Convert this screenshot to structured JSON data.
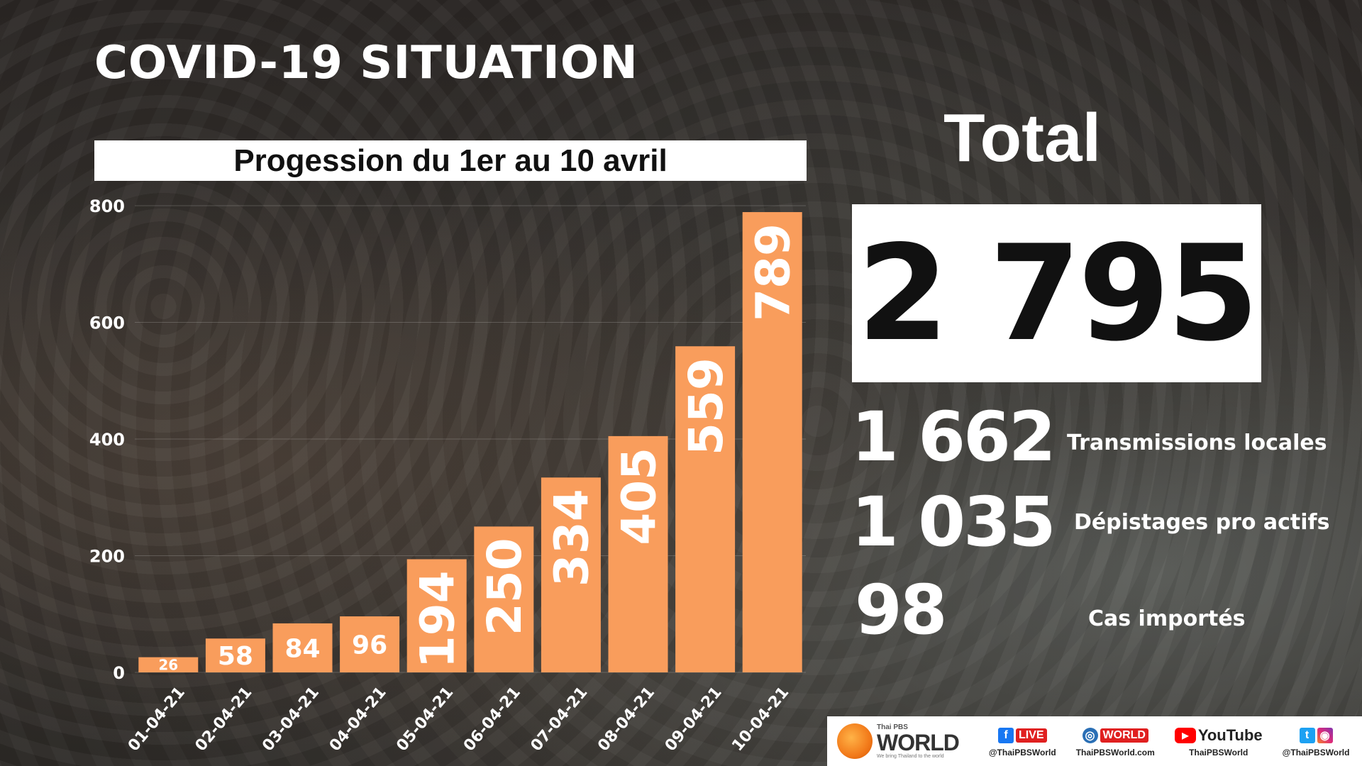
{
  "header": {
    "title": "COVID-19 SITUATION"
  },
  "subtitle": "Progession du 1er au 10 avril",
  "chart_data": {
    "type": "bar",
    "title": "Progession du 1er au 10 avril",
    "categories": [
      "01-04-21",
      "02-04-21",
      "03-04-21",
      "04-04-21",
      "05-04-21",
      "06-04-21",
      "07-04-21",
      "08-04-21",
      "09-04-21",
      "10-04-21"
    ],
    "values": [
      26,
      58,
      84,
      96,
      194,
      250,
      334,
      405,
      559,
      789
    ],
    "ylim": [
      0,
      800
    ],
    "yticks": [
      0,
      200,
      400,
      600,
      800
    ],
    "bar_color": "#f99d5c",
    "grid": true
  },
  "totals": {
    "label": "Total",
    "value": "2 795",
    "breakdown": [
      {
        "value": "1 662",
        "label": "Transmissions locales"
      },
      {
        "value": "1 035",
        "label": "Dépistages pro actifs"
      },
      {
        "value": "98",
        "label": "Cas importés"
      }
    ]
  },
  "footer": {
    "brand_top": "Thai PBS",
    "brand_name": "WORLD",
    "brand_tagline": "We bring Thailand to the world",
    "socials": [
      {
        "icon": "facebook-live-icon",
        "badge": "LIVE",
        "handle": "@ThaiPBSWorld"
      },
      {
        "icon": "globe-icon",
        "badge": "WORLD",
        "handle": "ThaiPBSWorld.com"
      },
      {
        "icon": "youtube-icon",
        "badge": "YouTube",
        "handle": "ThaiPBSWorld"
      },
      {
        "icon": "twitter-instagram-icon",
        "badge": "",
        "handle": "@ThaiPBSWorld"
      }
    ]
  }
}
